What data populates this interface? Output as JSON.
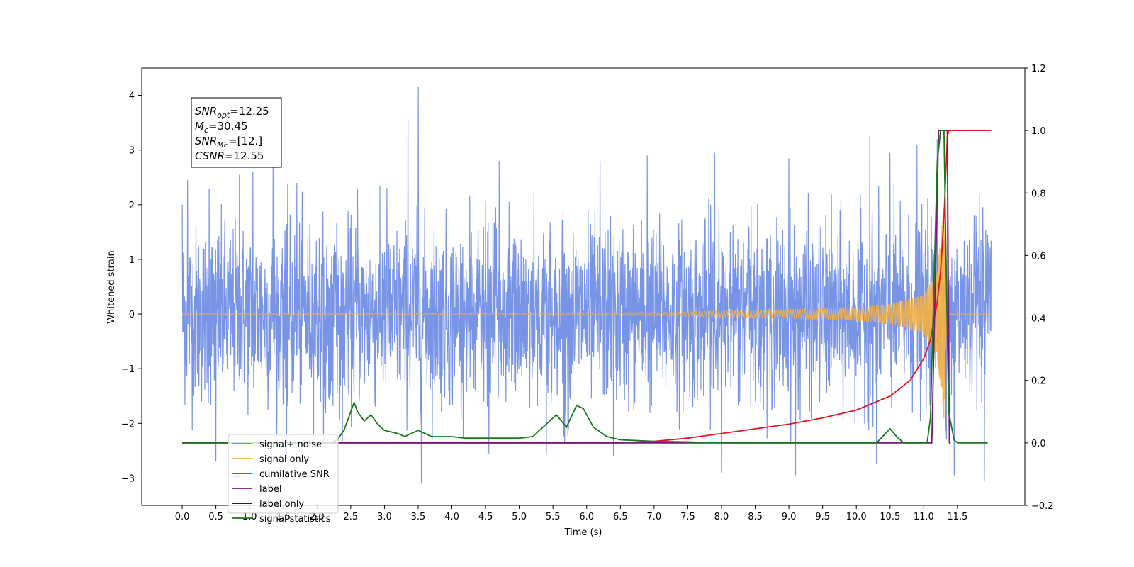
{
  "chart_data": {
    "type": "line",
    "title": "",
    "xlabel": "Time (s)",
    "ylabel": "Whitened strain",
    "ylabel_right": "",
    "xlim": [
      -0.6,
      12.5
    ],
    "ylim": [
      -3.5,
      4.5
    ],
    "ylim_right": [
      -0.2,
      1.2
    ],
    "x_ticks": [
      0.0,
      0.5,
      1.0,
      1.5,
      2.0,
      2.5,
      3.0,
      3.5,
      4.0,
      4.5,
      5.0,
      5.5,
      6.0,
      6.5,
      7.0,
      7.5,
      8.0,
      8.5,
      9.0,
      9.5,
      10.0,
      10.5,
      11.0,
      11.5
    ],
    "x_tick_labels": [
      "0.0",
      "0.5",
      "1.0",
      "1.5",
      "2.0",
      "2.5",
      "3.0",
      "3.5",
      "4.0",
      "4.5",
      "5.0",
      "5.5",
      "6.0",
      "6.5",
      "7.0",
      "7.5",
      "8.0",
      "8.5",
      "9.0",
      "9.5",
      "10.0",
      "10.5",
      "11.0",
      "11.5"
    ],
    "y_ticks": [
      -3,
      -2,
      -1,
      0,
      1,
      2,
      3,
      4
    ],
    "y_tick_labels": [
      "−3",
      "−2",
      "−1",
      "0",
      "1",
      "2",
      "3",
      "4"
    ],
    "y_ticks_right": [
      -0.2,
      0.0,
      0.2,
      0.4,
      0.6,
      0.8,
      1.0,
      1.2
    ],
    "y_tick_labels_right": [
      "−0.2",
      "0.0",
      "0.2",
      "0.4",
      "0.6",
      "0.8",
      "1.0",
      "1.2"
    ],
    "grid": false,
    "legend_position": "lower-left",
    "annotation": {
      "lines": [
        {
          "main": "SNR",
          "sub": "opt",
          "rest": "=12.25"
        },
        {
          "main": "M",
          "sub": "c",
          "rest": "=30.45"
        },
        {
          "main": "SNR",
          "sub": "MF",
          "rest": "=[12.]"
        },
        {
          "main": "CSNR",
          "sub": "",
          "rest": "=12.55"
        }
      ]
    },
    "series": [
      {
        "name": "signal+ noise",
        "axis": "left",
        "color": "#5a7de0",
        "x_range": [
          0.0,
          12.0
        ],
        "envelope_typical": 1.3,
        "peaks": [
          [
            0.0,
            2.0
          ],
          [
            0.08,
            2.45
          ],
          [
            0.4,
            2.3
          ],
          [
            0.85,
            2.55
          ],
          [
            1.05,
            2.6
          ],
          [
            1.35,
            2.9
          ],
          [
            1.7,
            2.4
          ],
          [
            2.6,
            2.3
          ],
          [
            3.5,
            4.15
          ],
          [
            3.35,
            3.55
          ],
          [
            4.7,
            2.8
          ],
          [
            5.4,
            2.75
          ],
          [
            6.2,
            2.8
          ],
          [
            6.9,
            2.9
          ],
          [
            7.9,
            2.95
          ],
          [
            9.0,
            2.85
          ],
          [
            10.2,
            3.25
          ],
          [
            10.5,
            2.95
          ],
          [
            10.9,
            3.1
          ],
          [
            11.2,
            3.2
          ],
          [
            11.35,
            2.6
          ]
        ],
        "troughs": [
          [
            0.5,
            -2.7
          ],
          [
            1.55,
            -2.65
          ],
          [
            3.55,
            -3.1
          ],
          [
            4.55,
            -2.55
          ],
          [
            5.4,
            -2.55
          ],
          [
            6.4,
            -2.6
          ],
          [
            8.0,
            -2.9
          ],
          [
            9.1,
            -2.95
          ],
          [
            10.3,
            -2.75
          ],
          [
            11.45,
            -2.95
          ],
          [
            11.9,
            -3.05
          ]
        ]
      },
      {
        "name": "signal only",
        "axis": "left",
        "color": "#f5b041",
        "x_range": [
          0.0,
          12.0
        ],
        "chirp_merger_time": 11.35,
        "amplitude_at": [
          [
            0.0,
            0.0
          ],
          [
            7.0,
            0.03
          ],
          [
            9.0,
            0.08
          ],
          [
            10.0,
            0.12
          ],
          [
            10.5,
            0.18
          ],
          [
            11.0,
            0.35
          ],
          [
            11.2,
            0.8
          ],
          [
            11.3,
            2.0
          ],
          [
            11.35,
            0.0
          ]
        ]
      },
      {
        "name": "cumilative SNR",
        "axis": "right",
        "color": "#e8141e",
        "x": [
          0.0,
          6.5,
          7.0,
          7.5,
          8.0,
          8.5,
          9.0,
          9.5,
          10.0,
          10.5,
          10.8,
          11.0,
          11.1,
          11.2,
          11.25,
          11.3,
          11.35,
          11.37,
          11.5,
          12.0
        ],
        "y": [
          0.0,
          0.0,
          0.005,
          0.015,
          0.03,
          0.045,
          0.06,
          0.08,
          0.105,
          0.15,
          0.2,
          0.27,
          0.33,
          0.45,
          0.55,
          0.72,
          0.98,
          1.0,
          1.0,
          1.0
        ]
      },
      {
        "name": "label",
        "axis": "right",
        "color": "#7a1480",
        "x": [
          0.0,
          11.12,
          11.22,
          11.35,
          11.38,
          11.4
        ],
        "y": [
          0.0,
          0.0,
          1.0,
          1.0,
          0.0,
          0.0
        ]
      },
      {
        "name": "label only",
        "axis": "right",
        "color": "#000000",
        "x": [],
        "y": []
      },
      {
        "name": "signal statistics",
        "axis": "right",
        "color": "#1a7a1a",
        "x": [
          0.0,
          2.2,
          2.3,
          2.4,
          2.5,
          2.55,
          2.6,
          2.7,
          2.8,
          2.9,
          3.0,
          3.2,
          3.3,
          3.5,
          3.7,
          4.0,
          4.2,
          4.5,
          5.0,
          5.2,
          5.4,
          5.55,
          5.7,
          5.85,
          5.95,
          6.1,
          6.3,
          6.5,
          7.0,
          7.5,
          8.0,
          10.3,
          10.5,
          10.6,
          10.7,
          11.05,
          11.1,
          11.15,
          11.2,
          11.25,
          11.3,
          11.33,
          11.37,
          11.45,
          11.5,
          11.95
        ],
        "y": [
          0.0,
          0.0,
          0.01,
          0.04,
          0.1,
          0.13,
          0.1,
          0.07,
          0.09,
          0.06,
          0.04,
          0.03,
          0.02,
          0.04,
          0.02,
          0.02,
          0.015,
          0.015,
          0.015,
          0.02,
          0.06,
          0.09,
          0.05,
          0.12,
          0.11,
          0.05,
          0.02,
          0.01,
          0.005,
          0.003,
          0.0,
          0.0,
          0.045,
          0.02,
          0.0,
          0.0,
          0.08,
          0.5,
          0.9,
          1.0,
          1.0,
          0.6,
          0.1,
          0.01,
          0.0,
          0.0
        ]
      }
    ]
  }
}
